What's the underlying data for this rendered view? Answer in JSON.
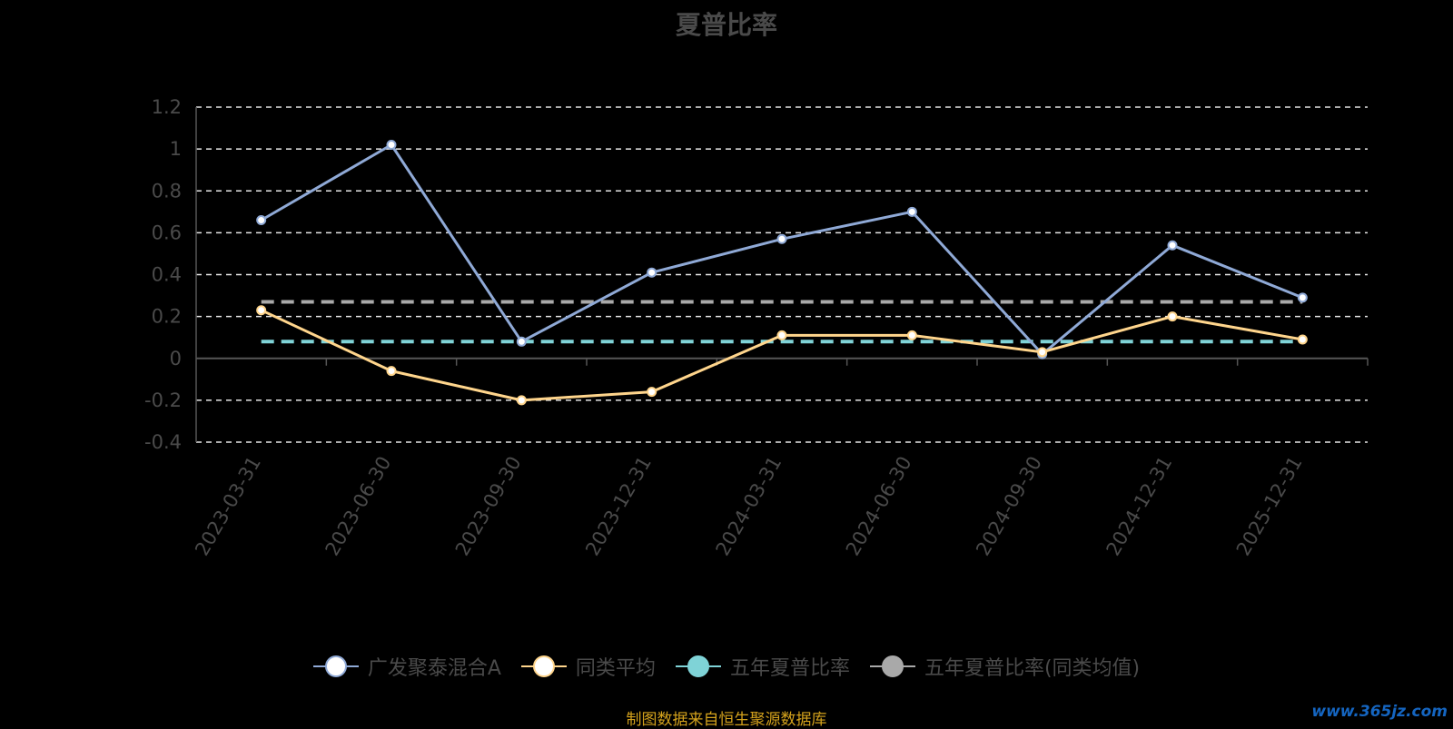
{
  "chart_data": {
    "type": "line",
    "title": "夏普比率",
    "categories": [
      "2023-03-31",
      "2023-06-30",
      "2023-09-30",
      "2023-12-31",
      "2024-03-31",
      "2024-06-30",
      "2024-09-30",
      "2024-12-31",
      "2025-12-31"
    ],
    "ylim": [
      -0.4,
      1.2
    ],
    "yticks": [
      "1.2",
      "1",
      "0.8",
      "0.6",
      "0.4",
      "0.2",
      "0",
      "-0.2",
      "-0.4"
    ],
    "grid": true,
    "legend_position": "bottom",
    "series": [
      {
        "name": "广发聚泰混合A",
        "color": "#8fa9d6",
        "marker": "circle",
        "dashed": false,
        "values": [
          0.66,
          1.02,
          0.08,
          0.41,
          0.57,
          0.7,
          0.02,
          0.54,
          0.29
        ]
      },
      {
        "name": "同类平均",
        "color": "#ffd58c",
        "marker": "circle",
        "dashed": false,
        "values": [
          0.23,
          -0.06,
          -0.2,
          -0.16,
          0.11,
          0.11,
          0.03,
          0.2,
          0.09
        ]
      },
      {
        "name": "五年夏普比率",
        "color": "#7fd3d7",
        "marker": "none",
        "dashed": true,
        "values": [
          0.08,
          0.08,
          0.08,
          0.08,
          0.08,
          0.08,
          0.08,
          0.08,
          0.08
        ]
      },
      {
        "name": "五年夏普比率(同类均值)",
        "color": "#a9a9a9",
        "marker": "none",
        "dashed": true,
        "values": [
          0.27,
          0.27,
          0.27,
          0.27,
          0.27,
          0.27,
          0.27,
          0.27,
          0.27
        ]
      }
    ]
  },
  "source_note": "制图数据来自恒生聚源数据库",
  "watermark": "www.365jz.com"
}
